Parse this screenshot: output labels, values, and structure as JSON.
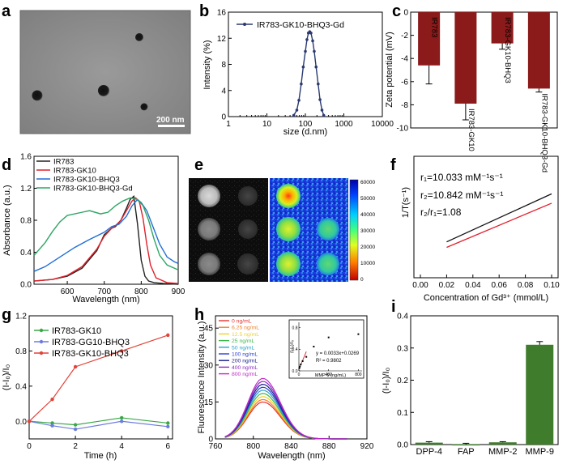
{
  "panels": {
    "a": {
      "letter": "a",
      "scale_bar": "200 nm"
    },
    "b": {
      "letter": "b",
      "chart_data": {
        "type": "line",
        "xscale": "log",
        "xlim": [
          1,
          10000
        ],
        "ylim": [
          0,
          16
        ],
        "x": [
          50,
          60,
          68,
          78,
          88,
          100,
          110,
          120,
          130,
          140,
          155,
          170,
          190,
          215,
          240,
          270,
          300
        ],
        "values": [
          0.2,
          1.0,
          2.5,
          5.0,
          7.6,
          10.0,
          11.8,
          12.8,
          13.0,
          12.8,
          11.6,
          10.0,
          7.6,
          5.0,
          2.6,
          1.0,
          0.2
        ],
        "xticks": [
          "1",
          "10",
          "100",
          "1000",
          "10000"
        ],
        "yticks": [
          "0",
          "4",
          "8",
          "12",
          "16"
        ],
        "xlabel": "size (d.nm)",
        "ylabel": "Intensity (%)",
        "legend": "IR783-GK10-BHQ3-Gd",
        "color": "#2b3a70"
      }
    },
    "c": {
      "letter": "c",
      "chart_data": {
        "type": "bar",
        "categories": [
          "IR783",
          "IR783-GK10",
          "IR783-GK10-BHQ3",
          "IR783-GK10-BHQ3-Gd"
        ],
        "values": [
          -4.6,
          -7.9,
          -2.7,
          -6.6
        ],
        "errors": [
          1.6,
          1.4,
          0.5,
          0.3
        ],
        "ylim": [
          -10,
          0
        ],
        "yticks": [
          "0",
          "-2",
          "-4",
          "-6",
          "-8",
          "-10"
        ],
        "ylabel": "Zeta  potential (mV)",
        "color": "#8b1a1a"
      }
    },
    "d": {
      "letter": "d",
      "chart_data": {
        "type": "line",
        "xlim": [
          510,
          900
        ],
        "ylim": [
          0,
          1.6
        ],
        "xticks": [
          "600",
          "700",
          "800",
          "900"
        ],
        "yticks": [
          "0.0",
          "0.4",
          "0.8",
          "1.2",
          "1.6"
        ],
        "xlabel": "Wavelength (nm)",
        "ylabel": "Absorbance (a.u.)",
        "series": [
          {
            "name": "IR783",
            "color": "#222222",
            "x": [
              510,
              560,
              600,
              640,
              680,
              700,
              720,
              730,
              745,
              760,
              770,
              780,
              790,
              800,
              810,
              820,
              835,
              860,
              900
            ],
            "values": [
              0.04,
              0.06,
              0.1,
              0.2,
              0.42,
              0.62,
              0.7,
              0.72,
              0.8,
              0.95,
              1.06,
              1.1,
              0.75,
              0.3,
              0.1,
              0.04,
              0.02,
              0.01,
              0.0
            ]
          },
          {
            "name": "IR783-GK10",
            "color": "#e0202a",
            "x": [
              510,
              560,
              600,
              640,
              680,
              700,
              720,
              730,
              745,
              760,
              775,
              785,
              795,
              805,
              815,
              825,
              840,
              870,
              900
            ],
            "values": [
              0.04,
              0.06,
              0.11,
              0.22,
              0.44,
              0.6,
              0.7,
              0.73,
              0.8,
              0.92,
              1.04,
              1.08,
              1.03,
              0.82,
              0.5,
              0.24,
              0.08,
              0.02,
              0.01
            ]
          },
          {
            "name": "IR783-GK10-BHQ3",
            "color": "#1f6fd6",
            "x": [
              510,
              540,
              580,
              620,
              660,
              700,
              720,
              740,
              760,
              775,
              790,
              800,
              815,
              830,
              850,
              870,
              890,
              900
            ],
            "values": [
              0.16,
              0.22,
              0.34,
              0.46,
              0.56,
              0.65,
              0.72,
              0.75,
              0.85,
              0.98,
              1.06,
              1.02,
              0.92,
              0.74,
              0.5,
              0.34,
              0.28,
              0.26
            ]
          },
          {
            "name": "IR783-GK10-BHQ3-Gd",
            "color": "#2ea565",
            "x": [
              510,
              540,
              560,
              580,
              600,
              640,
              660,
              690,
              710,
              730,
              750,
              770,
              790,
              805,
              820,
              835,
              850,
              870,
              900
            ],
            "values": [
              0.36,
              0.52,
              0.66,
              0.78,
              0.86,
              0.9,
              0.92,
              0.88,
              0.9,
              0.98,
              1.04,
              1.08,
              1.06,
              0.98,
              0.8,
              0.56,
              0.36,
              0.24,
              0.18
            ]
          }
        ]
      }
    },
    "e": {
      "letter": "e",
      "colorbar_ticks": [
        "60000",
        "50000",
        "40000",
        "30000",
        "20000",
        "10000",
        "0"
      ]
    },
    "f": {
      "letter": "f",
      "chart_data": {
        "type": "line",
        "xlim": [
          0.0,
          0.1
        ],
        "ylim": [
          0,
          2.2
        ],
        "xticks": [
          "0.00",
          "0.02",
          "0.04",
          "0.06",
          "0.08",
          "0.10"
        ],
        "xlabel": "Concentration of Gd³⁺ (mmol/L)",
        "ylabel": "1/T(s⁻¹)",
        "series": [
          {
            "name": "r2",
            "color": "#111111",
            "x": [
              0.02,
              0.1
            ],
            "values": [
              0.65,
              1.52
            ]
          },
          {
            "name": "r1",
            "color": "#e0202a",
            "x": [
              0.02,
              0.1
            ],
            "values": [
              0.55,
              1.35
            ]
          }
        ],
        "annotations": {
          "r1": "r₁=10.033  mM⁻¹s⁻¹",
          "r2": "r₂=10.842  mM⁻¹s⁻¹",
          "ratio": "r₂/r₁=1.08"
        }
      }
    },
    "g": {
      "letter": "g",
      "chart_data": {
        "type": "line",
        "xlim": [
          0,
          6.2
        ],
        "ylim": [
          -0.2,
          1.2
        ],
        "x": [
          0,
          1,
          2,
          4,
          6
        ],
        "xticks": [
          "0",
          "2",
          "4",
          "6"
        ],
        "yticks": [
          "0.0",
          "0.4",
          "0.8",
          "1.2"
        ],
        "xlabel": "Time (h)",
        "ylabel": "(I-I₀)/I₀",
        "series": [
          {
            "name": "IR783-GK10",
            "color": "#3aa845",
            "values": [
              0.0,
              -0.02,
              -0.04,
              0.04,
              -0.02
            ]
          },
          {
            "name": "IR783-GG10-BHQ3",
            "color": "#6b7be0",
            "values": [
              0.0,
              -0.05,
              -0.09,
              0.0,
              -0.06
            ]
          },
          {
            "name": "IR783-GK10-BHQ3",
            "color": "#e0443a",
            "values": [
              0.0,
              0.25,
              0.62,
              0.8,
              0.98
            ]
          }
        ]
      }
    },
    "h": {
      "letter": "h",
      "chart_data": {
        "type": "line",
        "xlim": [
          760,
          920
        ],
        "ylim": [
          0,
          50
        ],
        "xticks": [
          "760",
          "800",
          "840",
          "880",
          "920"
        ],
        "yticks": [
          "0",
          "15",
          "30",
          "45"
        ],
        "xlabel": "Wavelength (nm)",
        "ylabel": "Fluorescence Intensity (a.u.)",
        "series": [
          {
            "name": "0 ng/mL",
            "color": "#e8322d",
            "peak": 15.0
          },
          {
            "name": "6.25 ng/mL",
            "color": "#f07f2a",
            "peak": 16.0
          },
          {
            "name": "12.5 ng/mL",
            "color": "#f0d02a",
            "peak": 17.2
          },
          {
            "name": "25 ng/mL",
            "color": "#3cb94a",
            "peak": 18.5
          },
          {
            "name": "50 ng/mL",
            "color": "#2aa2c8",
            "peak": 19.8
          },
          {
            "name": "100 ng/mL",
            "color": "#2a3fd4",
            "peak": 21.0
          },
          {
            "name": "200 ng/mL",
            "color": "#161a8a",
            "peak": 22.2
          },
          {
            "name": "400 ng/mL",
            "color": "#8a2ac4",
            "peak": 23.4
          },
          {
            "name": "800 ng/mL",
            "color": "#c02ac4",
            "peak": 24.6
          }
        ],
        "inset": {
          "xlim": [
            0,
            850
          ],
          "ylim": [
            0,
            0.9
          ],
          "xticks": [
            "0",
            "400",
            "800"
          ],
          "yticks": [
            "0.0",
            "0.4",
            "0.8"
          ],
          "xlabel": "MMP-9 (ng/mL)",
          "ylabel": "(I-I₀)/I₀",
          "x": [
            6.25,
            12.5,
            25,
            50,
            100,
            200,
            400,
            800
          ],
          "values": [
            0.05,
            0.08,
            0.12,
            0.18,
            0.26,
            0.45,
            0.62,
            0.68
          ],
          "fit_x": [
            0,
            100
          ],
          "fit_y": [
            0.0269,
            0.3569
          ],
          "equation": "y = 0.0033x+0.0269",
          "r2": "R² = 0.9802"
        }
      }
    },
    "i": {
      "letter": "i",
      "chart_data": {
        "type": "bar",
        "categories": [
          "DPP-4",
          "FAP",
          "MMP-2",
          "MMP-9"
        ],
        "values": [
          0.006,
          0.001,
          0.007,
          0.31
        ],
        "errors": [
          0.003,
          0.003,
          0.002,
          0.01
        ],
        "ylim": [
          0,
          0.4
        ],
        "yticks": [
          "0.0",
          "0.1",
          "0.2",
          "0.3",
          "0.4"
        ],
        "ylabel": "(I-I₀)/I₀",
        "color": "#3f7d2c"
      }
    }
  }
}
